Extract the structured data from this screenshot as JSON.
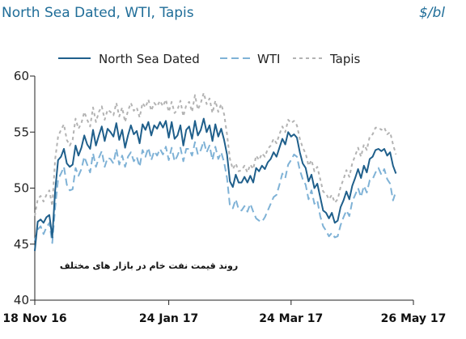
{
  "chart_data": {
    "type": "line",
    "title": "North Sea Dated, WTI, Tapis",
    "unit": "$/bl",
    "annotation": "روند قیمت نفت خام در بازار های مختلف",
    "x_tick_labels": [
      "18 Nov 16",
      "24 Jan 17",
      "24 Mar 17",
      "26 May 17"
    ],
    "x_tick_positions": [
      0,
      46,
      88,
      130
    ],
    "x_range": [
      0,
      130
    ],
    "ylim": [
      40,
      60
    ],
    "y_ticks": [
      40,
      45,
      50,
      55,
      60
    ],
    "legend_position": "top",
    "grid": false,
    "series": [
      {
        "name": "North Sea Dated",
        "color": "#1f5f8b",
        "dash": "",
        "values": [
          44.4,
          47.0,
          47.2,
          46.9,
          47.4,
          47.6,
          45.6,
          49.8,
          52.5,
          52.8,
          53.5,
          52.2,
          51.9,
          52.1,
          53.8,
          52.9,
          53.6,
          54.7,
          53.9,
          53.5,
          55.2,
          53.8,
          54.7,
          55.5,
          54.2,
          55.3,
          55.0,
          54.6,
          55.8,
          54.3,
          55.2,
          53.6,
          54.7,
          55.6,
          54.8,
          55.1,
          54.0,
          55.7,
          55.2,
          55.9,
          54.7,
          55.6,
          55.3,
          55.9,
          55.4,
          56.0,
          54.5,
          55.9,
          54.4,
          54.7,
          55.6,
          53.8,
          55.2,
          55.5,
          54.4,
          56.0,
          54.7,
          55.2,
          56.2,
          55.0,
          55.6,
          54.2,
          55.7,
          54.6,
          55.3,
          54.3,
          53.0,
          50.6,
          50.1,
          51.2,
          50.5,
          50.5,
          51.0,
          50.5,
          51.1,
          50.5,
          51.8,
          51.5,
          52.0,
          51.7,
          52.3,
          52.6,
          53.2,
          52.8,
          53.6,
          54.4,
          53.9,
          55.0,
          54.6,
          54.8,
          54.5,
          53.2,
          52.2,
          51.8,
          50.6,
          51.2,
          50.0,
          50.4,
          49.2,
          48.0,
          47.8,
          47.3,
          47.8,
          46.9,
          47.1,
          48.3,
          48.9,
          49.7,
          49.0,
          50.2,
          50.9,
          51.7,
          50.9,
          52.0,
          51.4,
          52.6,
          52.8,
          53.4,
          53.5,
          53.3,
          53.5,
          52.9,
          53.2,
          52.0,
          51.3
        ]
      },
      {
        "name": "WTI",
        "color": "#7fb2d6",
        "dash": "9,5",
        "values": [
          45.3,
          46.3,
          46.6,
          45.9,
          46.5,
          46.9,
          45.1,
          48.3,
          50.8,
          51.3,
          51.9,
          50.3,
          49.8,
          49.9,
          51.8,
          51.1,
          51.7,
          52.8,
          52.1,
          51.4,
          53.1,
          51.9,
          52.7,
          53.3,
          51.9,
          52.7,
          52.6,
          52.2,
          53.5,
          52.1,
          52.9,
          51.9,
          52.8,
          53.2,
          52.4,
          52.8,
          51.9,
          53.4,
          52.8,
          53.6,
          52.5,
          53.3,
          52.9,
          53.5,
          53.0,
          53.7,
          52.5,
          53.6,
          52.4,
          52.9,
          53.6,
          52.4,
          53.5,
          53.5,
          52.9,
          54.1,
          53.0,
          53.4,
          54.2,
          53.2,
          53.8,
          52.5,
          53.7,
          52.6,
          53.2,
          52.3,
          50.9,
          48.4,
          48.2,
          49.0,
          48.1,
          48.0,
          48.4,
          47.9,
          48.6,
          47.9,
          47.3,
          47.1,
          47.0,
          47.4,
          48.0,
          48.6,
          49.2,
          49.4,
          50.3,
          51.3,
          50.9,
          52.1,
          52.5,
          53.0,
          52.8,
          51.6,
          50.8,
          50.3,
          49.0,
          49.8,
          48.6,
          48.9,
          47.5,
          46.6,
          46.2,
          45.7,
          46.0,
          45.6,
          45.7,
          46.7,
          47.4,
          48.0,
          47.5,
          48.8,
          49.4,
          50.0,
          49.2,
          50.2,
          49.6,
          50.7,
          50.8,
          51.4,
          51.8,
          51.2,
          51.7,
          50.8,
          50.4,
          48.9,
          49.7
        ]
      },
      {
        "name": "Tapis",
        "color": "#b3b3b3",
        "dash": "4,4",
        "values": [
          47.5,
          49.0,
          49.3,
          48.8,
          49.4,
          49.8,
          48.4,
          52.6,
          54.6,
          55.2,
          55.7,
          54.3,
          53.8,
          54.3,
          56.2,
          55.3,
          55.8,
          56.8,
          56.1,
          55.5,
          57.2,
          55.9,
          56.8,
          57.3,
          56.1,
          57.0,
          56.8,
          56.5,
          57.6,
          56.4,
          57.2,
          55.9,
          56.9,
          57.6,
          56.9,
          57.2,
          56.3,
          57.6,
          57.2,
          57.9,
          56.9,
          57.6,
          57.3,
          57.8,
          57.3,
          57.9,
          56.8,
          57.7,
          56.7,
          57.0,
          57.8,
          56.4,
          57.4,
          57.7,
          56.8,
          58.3,
          57.0,
          57.6,
          58.5,
          57.5,
          58.0,
          56.7,
          57.8,
          56.8,
          57.5,
          56.6,
          54.8,
          52.6,
          51.7,
          52.2,
          51.5,
          51.6,
          52.0,
          51.4,
          52.1,
          51.7,
          52.9,
          52.5,
          53.1,
          52.8,
          53.5,
          53.8,
          54.4,
          54.0,
          54.8,
          55.5,
          55.0,
          56.1,
          55.8,
          56.0,
          55.6,
          54.4,
          53.6,
          53.1,
          52.0,
          52.5,
          51.5,
          51.9,
          50.8,
          49.7,
          49.5,
          49.0,
          49.4,
          48.7,
          49.0,
          50.1,
          50.8,
          51.6,
          51.0,
          52.2,
          52.9,
          53.6,
          52.8,
          53.9,
          53.4,
          54.6,
          54.8,
          55.4,
          55.4,
          55.2,
          55.4,
          54.8,
          55.0,
          53.9,
          53.0
        ]
      }
    ]
  }
}
